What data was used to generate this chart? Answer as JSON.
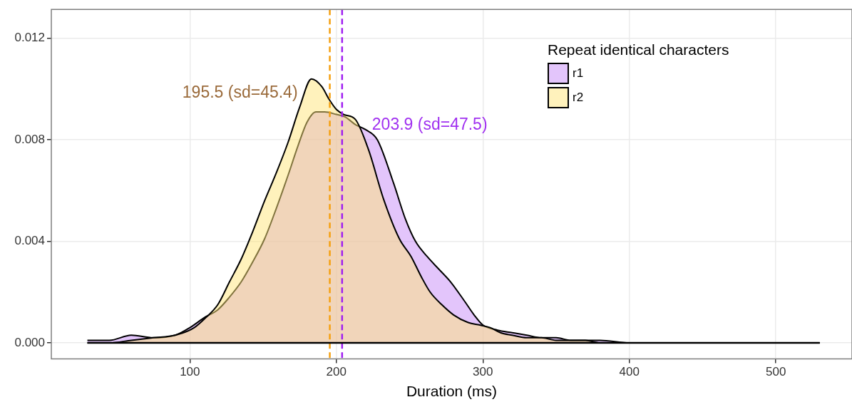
{
  "chart_data": {
    "type": "area",
    "xlabel": "Duration (ms)",
    "legend_title": "Repeat identical characters",
    "legend": "top right",
    "grid": true,
    "line_style": "solid",
    "marker": "none",
    "xlim": [
      5.4,
      552
    ],
    "ylim": [
      -0.00063,
      0.01314
    ],
    "xticks": [
      100,
      200,
      300,
      400,
      500
    ],
    "yticks": [
      {
        "value": 0,
        "label": "0.000"
      },
      {
        "value": 0.004,
        "label": "0.004"
      },
      {
        "value": 0.008,
        "label": "0.008"
      },
      {
        "value": 0.012,
        "label": "0.012"
      }
    ],
    "series": [
      {
        "name": "r1",
        "color": "#c78bf7",
        "x": [
          30,
          45,
          60,
          75,
          90,
          100,
          110,
          119,
          127,
          135,
          143,
          151,
          159,
          167,
          174,
          180,
          186,
          192,
          200,
          206,
          213,
          220,
          228,
          239,
          247,
          254,
          262,
          270,
          278,
          288,
          294,
          300,
          310,
          320,
          330,
          340,
          350,
          360,
          370,
          380,
          400,
          460,
          530
        ],
        "values": [
          0.0001,
          0.0001,
          0.0003,
          0.0002,
          0.0003,
          0.0006,
          0.001,
          0.0013,
          0.0018,
          0.0024,
          0.0032,
          0.0041,
          0.0053,
          0.0066,
          0.0078,
          0.0087,
          0.0091,
          0.0091,
          0.009,
          0.0089,
          0.0086,
          0.0084,
          0.008,
          0.0063,
          0.0049,
          0.004,
          0.0034,
          0.0029,
          0.0024,
          0.0016,
          0.0011,
          0.0007,
          0.0005,
          0.0004,
          0.0003,
          0.0002,
          0.0002,
          0.0001,
          0.0001,
          0.0001,
          0,
          0,
          0
        ]
      },
      {
        "name": "r2",
        "color": "#ffe57a",
        "x": [
          30,
          45,
          60,
          75,
          90,
          103,
          111,
          119,
          127,
          135,
          143,
          151,
          159,
          167,
          175,
          183,
          190,
          195,
          200,
          205,
          213,
          222,
          232,
          243,
          251,
          258,
          264,
          272,
          280,
          290,
          298,
          305,
          312,
          320,
          330,
          340,
          350,
          360,
          370,
          380,
          400,
          460,
          530
        ],
        "values": [
          0,
          0,
          0.0001,
          0.0002,
          0.0003,
          0.0006,
          0.001,
          0.0015,
          0.0024,
          0.0033,
          0.0044,
          0.0056,
          0.0067,
          0.0079,
          0.0093,
          0.0104,
          0.0101,
          0.0096,
          0.0092,
          0.009,
          0.0088,
          0.0076,
          0.0057,
          0.0041,
          0.0034,
          0.0026,
          0.002,
          0.0015,
          0.0011,
          0.0008,
          0.0007,
          0.0006,
          0.0004,
          0.0003,
          0.0002,
          0.0002,
          0.0001,
          0.0001,
          0.0001,
          0,
          0,
          0,
          0
        ]
      }
    ],
    "ref_lines": [
      {
        "axis": "x",
        "value": 195.5,
        "color": "#f5a010",
        "line_style": "dashed",
        "label": "195.5 (sd=45.4)"
      },
      {
        "axis": "x",
        "value": 203.9,
        "color": "#a020f0",
        "line_style": "dashed",
        "label": "203.9 (sd=47.5)"
      }
    ]
  }
}
